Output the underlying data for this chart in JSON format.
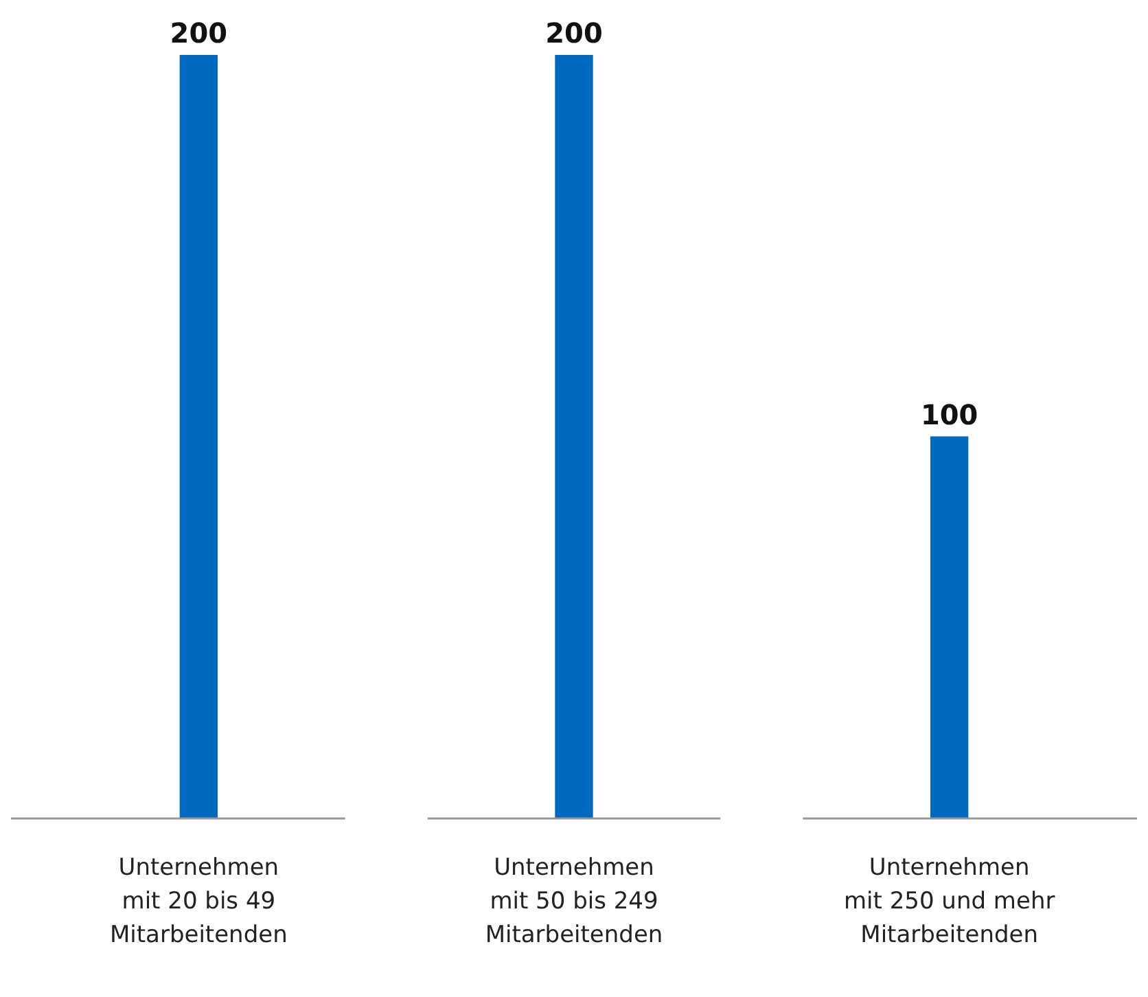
{
  "chart_data": {
    "type": "bar",
    "categories": [
      "Unternehmen\nmit 20 bis 49\nMitarbeitenden",
      "Unternehmen\nmit 50 bis 249\nMitarbeitenden",
      "Unternehmen\nmit 250 und mehr\nMitarbeitenden"
    ],
    "values": [
      200,
      200,
      100
    ],
    "color": "#0069c0",
    "ylim": [
      0,
      200
    ],
    "data_labels": true,
    "grid": false,
    "legend": false
  }
}
